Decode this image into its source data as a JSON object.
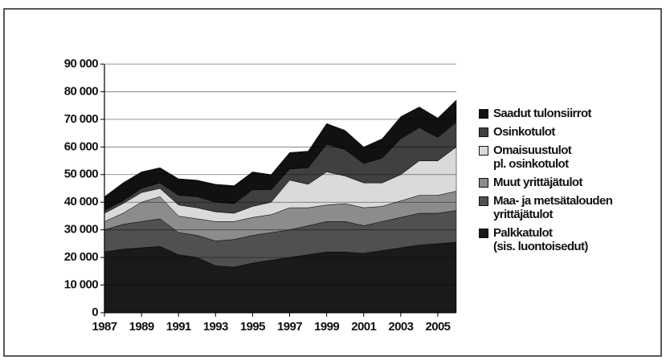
{
  "chart_data": {
    "type": "stacked_area",
    "x": [
      1987,
      1988,
      1989,
      1990,
      1991,
      1992,
      1993,
      1994,
      1995,
      1996,
      1997,
      1998,
      1999,
      2000,
      2001,
      2002,
      2003,
      2004,
      2005,
      2006
    ],
    "xlim": [
      1987,
      2006
    ],
    "xticks": [
      1987,
      1989,
      1991,
      1993,
      1995,
      1997,
      1999,
      2001,
      2003,
      2005
    ],
    "ylim": [
      0,
      90000
    ],
    "yticks": [
      0,
      {
        "value": 10000,
        "label": "10 000"
      },
      {
        "value": 20000,
        "label": "20 000"
      },
      {
        "value": 30000,
        "label": "30 000"
      },
      {
        "value": 40000,
        "label": "40 000"
      },
      {
        "value": 50000,
        "label": "50 000"
      },
      {
        "value": 60000,
        "label": "60 000"
      },
      {
        "value": 70000,
        "label": "70 000"
      },
      {
        "value": 80000,
        "label": "80 000"
      },
      {
        "value": 90000,
        "label": "90 000"
      }
    ],
    "grid": true,
    "series": [
      {
        "name": "Palkkatulot\n(sis. luontoisedut)",
        "color": "#1a1a1a",
        "values": [
          22000,
          23000,
          23500,
          24000,
          21000,
          20000,
          17000,
          16500,
          18000,
          19000,
          20000,
          21000,
          22000,
          22000,
          21500,
          22500,
          23500,
          24500,
          25000,
          25500
        ]
      },
      {
        "name": "Maa- ja metsätalouden\nyrittäjätulot",
        "color": "#505050",
        "values": [
          8000,
          9000,
          9500,
          10000,
          8000,
          8000,
          9000,
          10000,
          10000,
          10000,
          10000,
          10500,
          11000,
          11000,
          10000,
          10500,
          11000,
          11500,
          11000,
          11500
        ]
      },
      {
        "name": "Muut yrittäjätulot",
        "color": "#8c8c8c",
        "values": [
          3000,
          4000,
          7000,
          8000,
          6000,
          6000,
          7000,
          6500,
          6500,
          6500,
          8000,
          6500,
          6000,
          6500,
          6500,
          5500,
          6000,
          6500,
          6500,
          7000
        ]
      },
      {
        "name": "Omaisuustulot\npl. osinkotulot",
        "color": "#dadada",
        "values": [
          3000,
          3500,
          3500,
          3000,
          4000,
          4000,
          3500,
          3000,
          4000,
          4500,
          10000,
          8500,
          12000,
          10000,
          9000,
          8500,
          9500,
          12500,
          12500,
          16000
        ]
      },
      {
        "name": "Osinkotulot",
        "color": "#404040",
        "values": [
          1000,
          1000,
          1500,
          2000,
          3500,
          4000,
          3500,
          3500,
          6000,
          4500,
          4000,
          6000,
          10000,
          9500,
          7000,
          9000,
          13000,
          12000,
          8500,
          9000
        ]
      },
      {
        "name": "Saadut tulonsiirrot",
        "color": "#111111",
        "values": [
          5000,
          6500,
          6000,
          5500,
          6000,
          6000,
          6500,
          6500,
          6500,
          5500,
          6000,
          6000,
          7500,
          7000,
          6000,
          7000,
          8000,
          7500,
          7000,
          8000
        ]
      }
    ]
  }
}
